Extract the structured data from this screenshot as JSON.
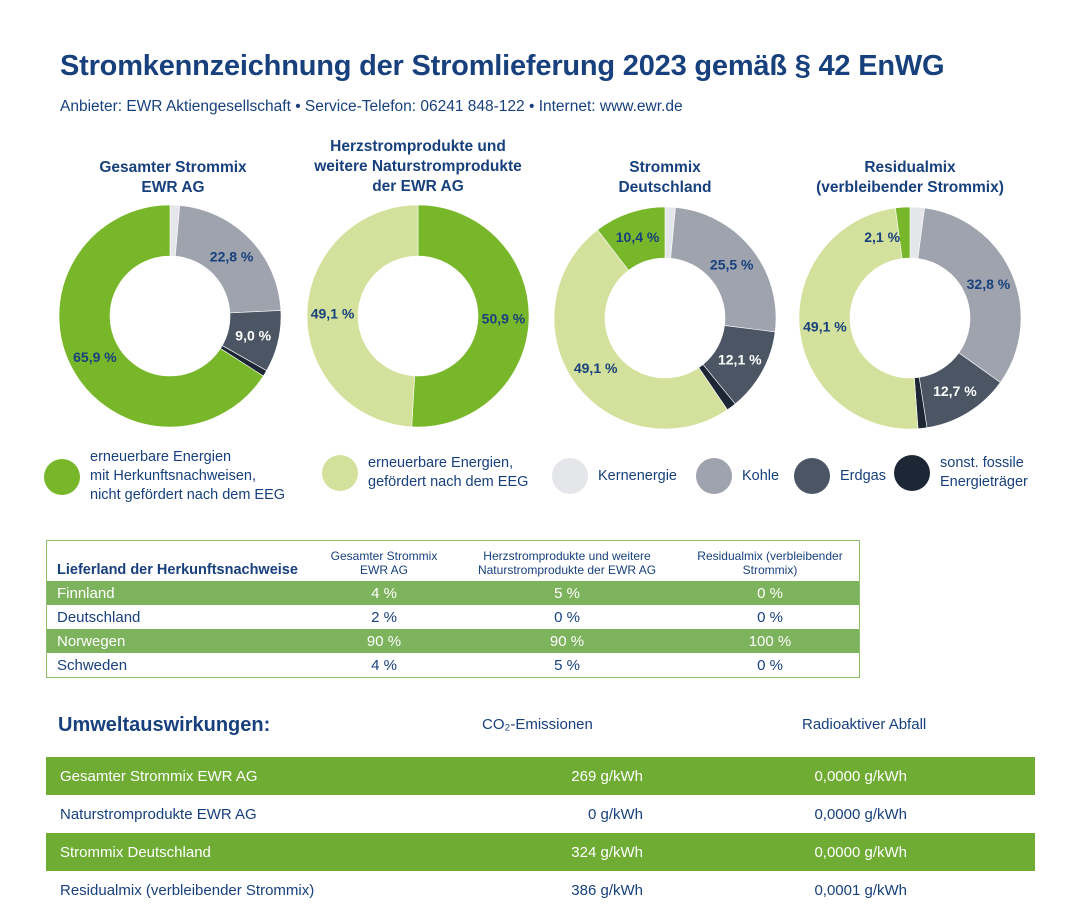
{
  "header": {
    "title": "Stromkennzeichnung der Stromlieferung 2023 gemäß § 42 EnWG",
    "subtitle": "Anbieter: EWR Aktiengesellschaft • Service-Telefon: 06241 848-122 • Internet: www.ewr.de"
  },
  "colors": {
    "hkn": "#78b72a",
    "eeg": "#d3e19c",
    "kern": "#e4e6e9",
    "kohle": "#9ea3ad",
    "erdgas": "#4b5563",
    "sonst": "#1d2634"
  },
  "chart_data": [
    {
      "type": "pie",
      "title_lines": [
        "Gesamter Strommix",
        "EWR AG"
      ],
      "segments": [
        {
          "key": "kern",
          "value": 1.4,
          "label": "1,4 %"
        },
        {
          "key": "kohle",
          "value": 22.8,
          "label": "22,8 %"
        },
        {
          "key": "erdgas",
          "value": 9.0,
          "label": "9,0 %"
        },
        {
          "key": "sonst",
          "value": 0.9,
          "label": "0,9 %"
        },
        {
          "key": "hkn",
          "value": 65.9,
          "label": "65,9 %"
        }
      ]
    },
    {
      "type": "pie",
      "title_lines": [
        "Herzstromprodukte und",
        "weitere Naturstromprodukte",
        "der EWR AG"
      ],
      "segments": [
        {
          "key": "hkn",
          "value": 50.9,
          "label": "50,9 %"
        },
        {
          "key": "eeg",
          "value": 49.1,
          "label": "49,1 %"
        }
      ]
    },
    {
      "type": "pie",
      "title_lines": [
        "Strommix",
        "Deutschland"
      ],
      "segments": [
        {
          "key": "kern",
          "value": 1.5,
          "label": "1,5 %"
        },
        {
          "key": "kohle",
          "value": 25.5,
          "label": "25,5 %"
        },
        {
          "key": "erdgas",
          "value": 12.1,
          "label": "12,1 %"
        },
        {
          "key": "sonst",
          "value": 1.4,
          "label": "1,4 %"
        },
        {
          "key": "eeg",
          "value": 49.1,
          "label": "49,1 %"
        },
        {
          "key": "hkn",
          "value": 10.4,
          "label": "10,4 %"
        }
      ]
    },
    {
      "type": "pie",
      "title_lines": [
        "Residualmix",
        "(verbleibender Strommix)"
      ],
      "segments": [
        {
          "key": "kern",
          "value": 2.1,
          "label": "2,1 %"
        },
        {
          "key": "kohle",
          "value": 32.8,
          "label": "32,8 %"
        },
        {
          "key": "erdgas",
          "value": 12.7,
          "label": "12,7 %"
        },
        {
          "key": "sonst",
          "value": 1.3,
          "label": "1,3 %"
        },
        {
          "key": "eeg",
          "value": 49.1,
          "label": "49,1 %"
        },
        {
          "key": "hkn",
          "value": 2.1,
          "label": "2,1 %"
        }
      ]
    }
  ],
  "legend": [
    {
      "key": "hkn",
      "label": "erneuerbare Energien\nmit Herkunftsnachweisen,\nnicht gefördert nach dem EEG"
    },
    {
      "key": "eeg",
      "label": "erneuerbare Energien,\ngefördert nach dem EEG"
    },
    {
      "key": "kern",
      "label": "Kernenergie"
    },
    {
      "key": "kohle",
      "label": "Kohle"
    },
    {
      "key": "erdgas",
      "label": "Erdgas"
    },
    {
      "key": "sonst",
      "label": "sonst. fossile\nEnergieträger"
    }
  ],
  "origin_table": {
    "headers": [
      "Lieferland der Herkunftsnachweise",
      "Gesamter Strommix EWR AG",
      "Herzstromprodukte und weitere Naturstromprodukte der EWR AG",
      "Residualmix (verbleibender Strommix)"
    ],
    "rows": [
      [
        "Finnland",
        "4 %",
        "5 %",
        "0 %"
      ],
      [
        "Deutschland",
        "2 %",
        "0 %",
        "0 %"
      ],
      [
        "Norwegen",
        "90 %",
        "90 %",
        "100 %"
      ],
      [
        "Schweden",
        "4 %",
        "5 %",
        "0 %"
      ]
    ]
  },
  "environment": {
    "title": "Umweltauswirkungen:",
    "co2_header": "CO₂-Emissionen",
    "waste_header": "Radioaktiver Abfall",
    "rows": [
      [
        "Gesamter Strommix EWR AG",
        "269 g/kWh",
        "0,0000 g/kWh"
      ],
      [
        "Naturstromprodukte EWR AG",
        "0 g/kWh",
        "0,0000 g/kWh"
      ],
      [
        "Strommix Deutschland",
        "324 g/kWh",
        "0,0000 g/kWh"
      ],
      [
        "Residualmix (verbleibender Strommix)",
        "386 g/kWh",
        "0,0001 g/kWh"
      ]
    ]
  }
}
